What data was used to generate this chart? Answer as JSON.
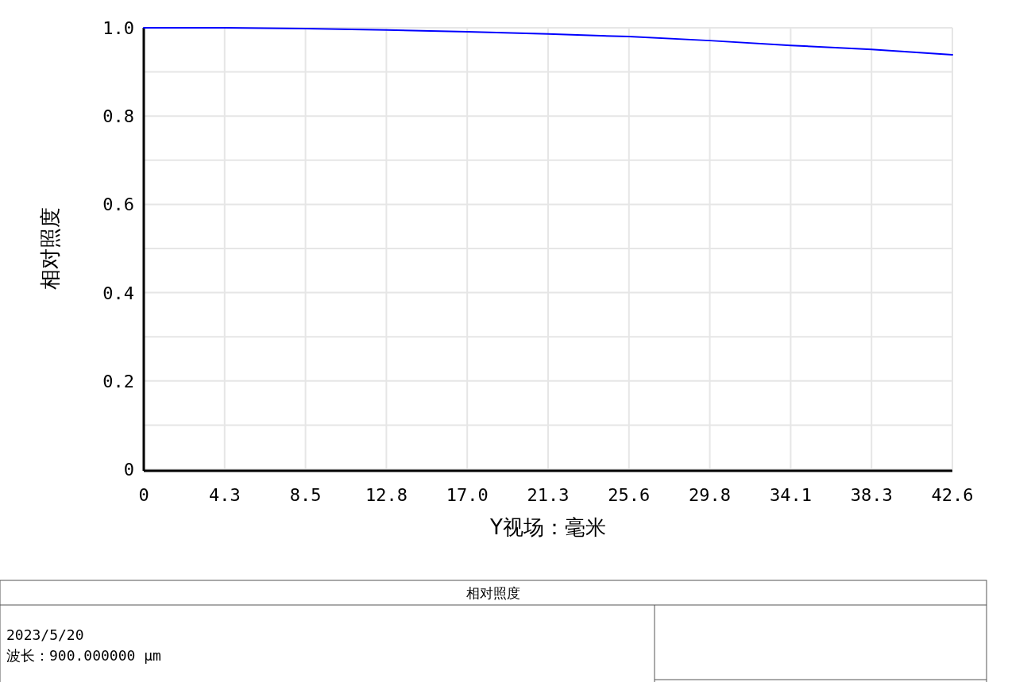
{
  "chart_data": {
    "type": "line",
    "title": "相对照度",
    "xlabel": "Y视场：毫米",
    "ylabel": "相对照度",
    "x": [
      0,
      4.26,
      8.52,
      12.78,
      17.04,
      21.3,
      25.56,
      29.82,
      34.08,
      38.34,
      42.6
    ],
    "series": [
      {
        "color": "#0000ff",
        "values": [
          1.0,
          1.0,
          0.998,
          0.995,
          0.991,
          0.986,
          0.98,
          0.971,
          0.96,
          0.951,
          0.939
        ]
      }
    ],
    "xlim": [
      0,
      42.6
    ],
    "xticks": [
      0,
      {
        "value": 4.26,
        "label": "4.3"
      },
      {
        "value": 8.52,
        "label": "8.5"
      },
      {
        "value": 12.78,
        "label": "12.8"
      },
      {
        "value": 17.04,
        "label": "17.0"
      },
      {
        "value": 21.3,
        "label": "21.3"
      },
      {
        "value": 25.56,
        "label": "25.6"
      },
      {
        "value": 29.82,
        "label": "29.8"
      },
      {
        "value": 34.08,
        "label": "34.1"
      },
      {
        "value": 38.34,
        "label": "38.3"
      },
      42.6
    ],
    "ylim": [
      0,
      1
    ],
    "yticks": [
      0,
      {
        "value": 0.1,
        "label": null
      },
      0.2,
      {
        "value": 0.3,
        "label": null
      },
      0.4,
      {
        "value": 0.5,
        "label": null
      },
      0.6,
      {
        "value": 0.7,
        "label": null
      },
      0.8,
      {
        "value": 0.9,
        "label": null
      },
      {
        "value": 1,
        "label": "1.0"
      }
    ],
    "grid": true,
    "marker": "none",
    "line_style": "solid",
    "annotations": [
      "2023/5/20",
      "波长：900.000000 µm"
    ]
  }
}
